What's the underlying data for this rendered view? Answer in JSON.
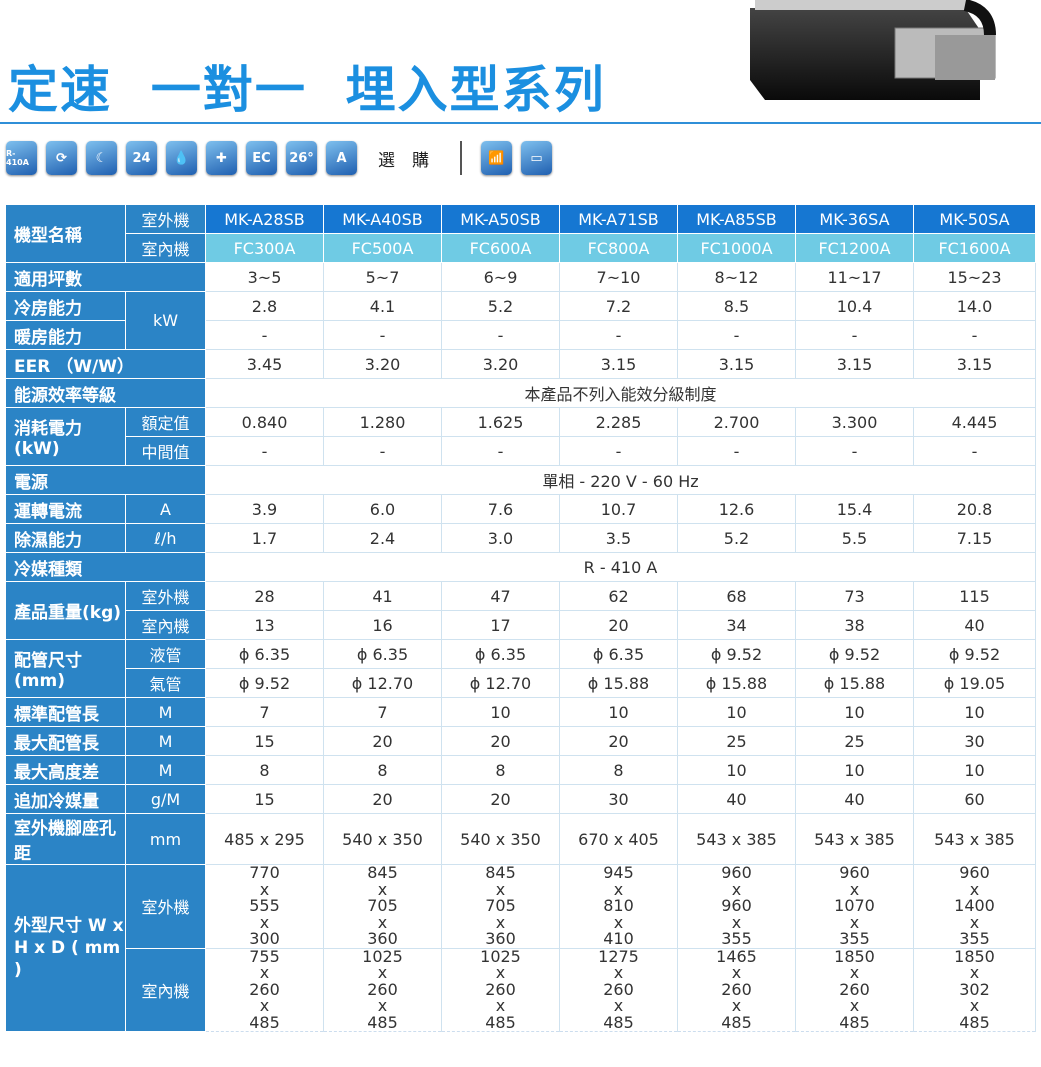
{
  "title": "定速  一對一  埋入型系列",
  "icons": [
    {
      "name": "r410a-leaf-icon",
      "text": "R-410A"
    },
    {
      "name": "power-refresh-icon",
      "text": "⟳"
    },
    {
      "name": "sleep-moon-icon",
      "text": "☾"
    },
    {
      "name": "timer-24-icon",
      "text": "24"
    },
    {
      "name": "dehumidify-drop-icon",
      "text": "💧"
    },
    {
      "name": "medical-cross-icon",
      "text": "✚"
    },
    {
      "name": "ec-icon",
      "text": "EC"
    },
    {
      "name": "thermometer-26c-icon",
      "text": "26°"
    },
    {
      "name": "auto-fan-icon",
      "text": "A"
    }
  ],
  "optional_label": "選　購",
  "optional_icons": [
    {
      "name": "remote-control-icon",
      "text": "📶"
    },
    {
      "name": "wired-controller-icon",
      "text": "▭"
    }
  ],
  "table": {
    "model_label": "機型名稱",
    "outdoor_label": "室外機",
    "indoor_label": "室內機",
    "outdoor_models": [
      "MK-A28SB",
      "MK-A40SB",
      "MK-A50SB",
      "MK-A71SB",
      "MK-A85SB",
      "MK-36SA",
      "MK-50SA"
    ],
    "indoor_models": [
      "FC300A",
      "FC500A",
      "FC600A",
      "FC800A",
      "FC1000A",
      "FC1200A",
      "FC1600A"
    ],
    "groups": [
      {
        "label": "適用坪數",
        "rows": [
          {
            "values": [
              "3~5",
              "5~7",
              "6~9",
              "7~10",
              "8~12",
              "11~17",
              "15~23"
            ]
          }
        ]
      },
      {
        "label": "冷房能力",
        "unit_span": "kW",
        "rows": [
          {
            "values": [
              "2.8",
              "4.1",
              "5.2",
              "7.2",
              "8.5",
              "10.4",
              "14.0"
            ]
          }
        ]
      },
      {
        "label": "暖房能力",
        "unit_span_cont": true,
        "rows": [
          {
            "values": [
              "-",
              "-",
              "-",
              "-",
              "-",
              "-",
              "-"
            ]
          }
        ]
      },
      {
        "label": "EER （W/W）",
        "rows": [
          {
            "values": [
              "3.45",
              "3.20",
              "3.20",
              "3.15",
              "3.15",
              "3.15",
              "3.15"
            ]
          }
        ]
      },
      {
        "label": "能源效率等級",
        "rows": [
          {
            "span": "本產品不列入能效分級制度"
          }
        ]
      },
      {
        "label": "消耗電力(kW)",
        "rows": [
          {
            "unit": "額定值",
            "values": [
              "0.840",
              "1.280",
              "1.625",
              "2.285",
              "2.700",
              "3.300",
              "4.445"
            ]
          },
          {
            "unit": "中間值",
            "values": [
              "-",
              "-",
              "-",
              "-",
              "-",
              "-",
              "-"
            ]
          }
        ]
      },
      {
        "label": "電源",
        "rows": [
          {
            "span": "單相 - 220 V - 60 Hz"
          }
        ]
      },
      {
        "label": "運轉電流",
        "rows": [
          {
            "unit": "A",
            "values": [
              "3.9",
              "6.0",
              "7.6",
              "10.7",
              "12.6",
              "15.4",
              "20.8"
            ]
          }
        ]
      },
      {
        "label": "除濕能力",
        "rows": [
          {
            "unit": "ℓ/h",
            "values": [
              "1.7",
              "2.4",
              "3.0",
              "3.5",
              "5.2",
              "5.5",
              "7.15"
            ]
          }
        ]
      },
      {
        "label": "冷媒種類",
        "rows": [
          {
            "span": "R - 410 A"
          }
        ]
      },
      {
        "label": "產品重量(kg)",
        "rows": [
          {
            "unit": "室外機",
            "values": [
              "28",
              "41",
              "47",
              "62",
              "68",
              "73",
              "115"
            ]
          },
          {
            "unit": "室內機",
            "values": [
              "13",
              "16",
              "17",
              "20",
              "34",
              "38",
              "40"
            ]
          }
        ]
      },
      {
        "label": "配管尺寸(mm)",
        "rows": [
          {
            "unit": "液管",
            "values": [
              "ϕ 6.35",
              "ϕ 6.35",
              "ϕ 6.35",
              "ϕ 6.35",
              "ϕ 9.52",
              "ϕ 9.52",
              "ϕ 9.52"
            ]
          },
          {
            "unit": "氣管",
            "values": [
              "ϕ 9.52",
              "ϕ 12.70",
              "ϕ 12.70",
              "ϕ 15.88",
              "ϕ 15.88",
              "ϕ 15.88",
              "ϕ 19.05"
            ]
          }
        ]
      },
      {
        "label": "標準配管長",
        "rows": [
          {
            "unit": "M",
            "values": [
              "7",
              "7",
              "10",
              "10",
              "10",
              "10",
              "10"
            ]
          }
        ]
      },
      {
        "label": "最大配管長",
        "rows": [
          {
            "unit": "M",
            "values": [
              "15",
              "20",
              "20",
              "20",
              "25",
              "25",
              "30"
            ]
          }
        ]
      },
      {
        "label": "最大高度差",
        "rows": [
          {
            "unit": "M",
            "values": [
              "8",
              "8",
              "8",
              "8",
              "10",
              "10",
              "10"
            ]
          }
        ]
      },
      {
        "label": "追加冷媒量",
        "rows": [
          {
            "unit": "g/M",
            "values": [
              "15",
              "20",
              "20",
              "30",
              "40",
              "40",
              "60"
            ]
          }
        ]
      },
      {
        "label": "室外機腳座孔距",
        "rows": [
          {
            "unit": "mm",
            "values": [
              "485 x 295",
              "540 x 350",
              "540 x 350",
              "670 x 405",
              "543 x 385",
              "543 x 385",
              "543 x 385"
            ]
          }
        ]
      },
      {
        "label": "外型尺寸 W x H x D ( mm )",
        "dims": true,
        "rows": [
          {
            "unit": "室外機",
            "values": [
              [
                "770",
                "555",
                "300"
              ],
              [
                "845",
                "705",
                "360"
              ],
              [
                "845",
                "705",
                "360"
              ],
              [
                "945",
                "810",
                "410"
              ],
              [
                "960",
                "960",
                "355"
              ],
              [
                "960",
                "1070",
                "355"
              ],
              [
                "960",
                "1400",
                "355"
              ]
            ]
          },
          {
            "unit": "室內機",
            "values": [
              [
                "755",
                "260",
                "485"
              ],
              [
                "1025",
                "260",
                "485"
              ],
              [
                "1025",
                "260",
                "485"
              ],
              [
                "1275",
                "260",
                "485"
              ],
              [
                "1465",
                "260",
                "485"
              ],
              [
                "1850",
                "260",
                "485"
              ],
              [
                "1850",
                "302",
                "485"
              ]
            ]
          }
        ]
      }
    ]
  }
}
